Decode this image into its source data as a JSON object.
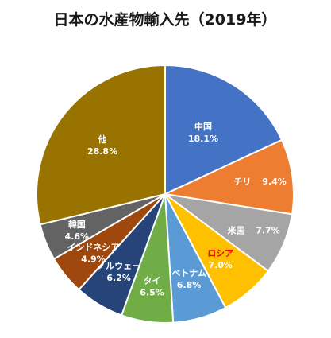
{
  "chart_data": {
    "type": "pie",
    "title": "日本の水産物輸入先（2019年）",
    "start_angle_deg": 0,
    "direction": "clockwise",
    "slices": [
      {
        "label": "中国",
        "value_text": "18.1%",
        "value": 18.1,
        "color": "#4472C4",
        "label_color": "#FFFFFF"
      },
      {
        "label": "チリ",
        "value_text": "9.4%",
        "value": 9.4,
        "color": "#ED7D31",
        "label_color": "#FFFFFF"
      },
      {
        "label": "米国",
        "value_text": "7.7%",
        "value": 7.7,
        "color": "#A5A5A5",
        "label_color": "#FFFFFF"
      },
      {
        "label": "ロシア",
        "value_text": "7.0%",
        "value": 7.0,
        "color": "#FFC000",
        "label_color": "#FF0000",
        "value_color": "#FFFFFF"
      },
      {
        "label": "ベトナム",
        "value_text": "6.8%",
        "value": 6.8,
        "color": "#5B9BD5",
        "label_color": "#FFFFFF"
      },
      {
        "label": "タイ",
        "value_text": "6.5%",
        "value": 6.5,
        "color": "#70AD47",
        "label_color": "#FFFFFF"
      },
      {
        "label": "ノルウェー",
        "value_text": "6.2%",
        "value": 6.2,
        "color": "#264478",
        "label_color": "#FFFFFF"
      },
      {
        "label": "インドネシア",
        "value_text": "4.9%",
        "value": 4.9,
        "color": "#9E480E",
        "label_color": "#FFFFFF"
      },
      {
        "label": "韓国",
        "value_text": "4.6%",
        "value": 4.6,
        "color": "#636363",
        "label_color": "#FFFFFF"
      },
      {
        "label": "他",
        "value_text": "28.8%",
        "value": 28.8,
        "color": "#997300",
        "label_color": "#FFFFFF"
      }
    ]
  }
}
